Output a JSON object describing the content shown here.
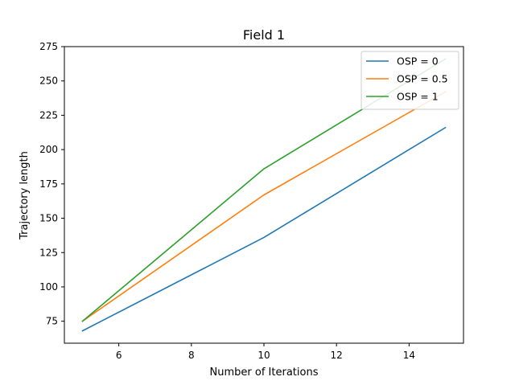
{
  "chart_data": {
    "type": "line",
    "title": "Field 1",
    "xlabel": "Number of Iterations",
    "ylabel": "Trajectory length",
    "xlim": [
      4.5,
      15.5
    ],
    "ylim": [
      59,
      275
    ],
    "xticks": [
      6,
      8,
      10,
      12,
      14
    ],
    "xtick_labels": [
      "6",
      "8",
      "10",
      "12",
      "14"
    ],
    "yticks": [
      75,
      100,
      125,
      150,
      175,
      200,
      225,
      250,
      275
    ],
    "ytick_labels": [
      "75",
      "100",
      "125",
      "150",
      "175",
      "200",
      "225",
      "250",
      "275"
    ],
    "grid": false,
    "legend_position": "upper right",
    "x": [
      5,
      10,
      15
    ],
    "series": [
      {
        "name": "OSP = 0",
        "values": [
          68,
          136,
          216
        ],
        "color": "#1f77b4"
      },
      {
        "name": "OSP = 0.5",
        "values": [
          75,
          167,
          242
        ],
        "color": "#ff7f0e"
      },
      {
        "name": "OSP = 1",
        "values": [
          75,
          186,
          266
        ],
        "color": "#2ca02c"
      }
    ]
  }
}
